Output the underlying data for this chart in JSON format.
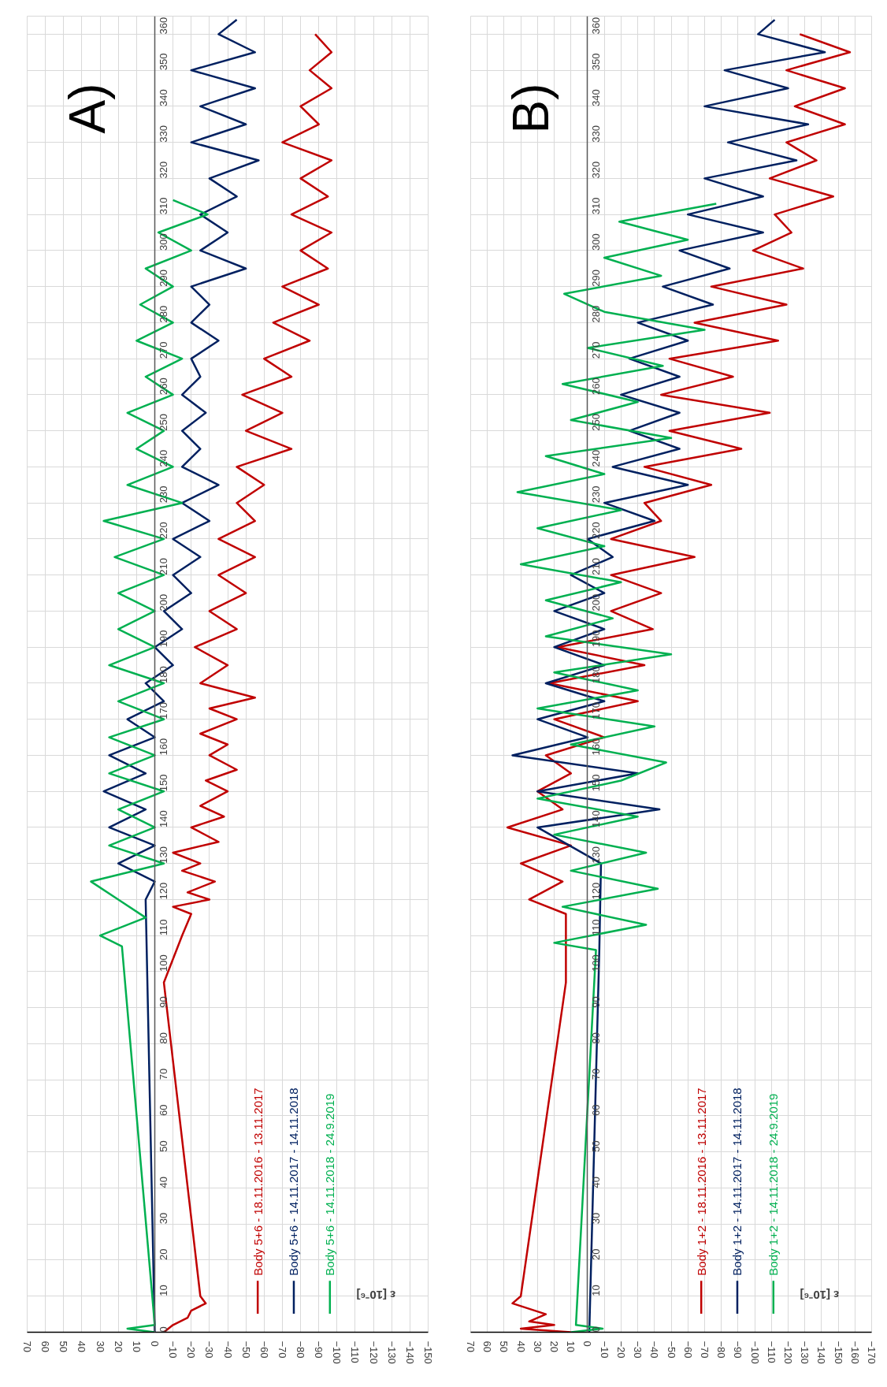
{
  "chart_data": [
    {
      "type": "line",
      "orientation": "horizontal",
      "title": "A)",
      "xlabel": "ε [10⁻⁶]",
      "ylim": [
        0,
        365
      ],
      "yticks": [
        0,
        10,
        20,
        30,
        40,
        50,
        60,
        70,
        80,
        90,
        100,
        110,
        120,
        130,
        140,
        150,
        160,
        170,
        180,
        190,
        200,
        210,
        220,
        230,
        240,
        250,
        260,
        270,
        280,
        290,
        300,
        310,
        320,
        330,
        340,
        350,
        360
      ],
      "xlim": [
        70,
        -150
      ],
      "xticks": [
        70,
        60,
        50,
        40,
        30,
        20,
        10,
        0,
        -10,
        -20,
        -30,
        -40,
        -50,
        -60,
        -70,
        -80,
        -90,
        -100,
        -110,
        -120,
        -130,
        -140,
        -150
      ],
      "grid": true,
      "legend": "bottom",
      "marker": "none",
      "line_style": "solid",
      "series": [
        {
          "name": "Body 5+6 - 18.11.2016 - 13.11.2017",
          "color": "#c00000",
          "x": [
            0,
            2,
            4,
            6,
            8,
            10,
            97,
            110,
            116,
            118,
            120,
            122,
            125,
            128,
            130,
            133,
            136,
            140,
            143,
            146,
            150,
            153,
            156,
            160,
            163,
            166,
            170,
            173,
            176,
            180,
            185,
            190,
            195,
            200,
            205,
            210,
            215,
            220,
            225,
            230,
            235,
            240,
            245,
            250,
            255,
            260,
            265,
            270,
            275,
            280,
            285,
            290,
            295,
            300,
            305,
            310,
            315,
            320,
            325,
            330,
            335,
            340,
            345,
            350,
            355,
            360
          ],
          "values": [
            -5,
            -10,
            -18,
            -20,
            -28,
            -25,
            -5,
            -15,
            -20,
            -10,
            -30,
            -18,
            -33,
            -15,
            -25,
            -10,
            -35,
            -20,
            -38,
            -25,
            -40,
            -28,
            -45,
            -30,
            -40,
            -25,
            -45,
            -30,
            -55,
            -25,
            -40,
            -22,
            -45,
            -30,
            -50,
            -35,
            -55,
            -35,
            -55,
            -45,
            -60,
            -45,
            -75,
            -50,
            -70,
            -48,
            -75,
            -60,
            -85,
            -65,
            -90,
            -70,
            -95,
            -80,
            -97,
            -75,
            -95,
            -80,
            -97,
            -70,
            -90,
            -80,
            -97,
            -85,
            -97,
            -88
          ]
        },
        {
          "name": "Body 5+6 - 14.11.2017 - 14.11.2018",
          "color": "#002060",
          "x": [
            0,
            120,
            125,
            130,
            135,
            140,
            145,
            150,
            155,
            160,
            165,
            170,
            175,
            180,
            185,
            190,
            195,
            200,
            205,
            210,
            215,
            220,
            225,
            230,
            235,
            240,
            245,
            250,
            255,
            260,
            265,
            270,
            275,
            280,
            285,
            290,
            295,
            300,
            305,
            310,
            315,
            320,
            325,
            330,
            335,
            340,
            345,
            350,
            355,
            360,
            364
          ],
          "values": [
            0,
            5,
            0,
            20,
            0,
            25,
            5,
            28,
            5,
            25,
            0,
            15,
            -5,
            5,
            -10,
            0,
            -15,
            -5,
            -20,
            -10,
            -25,
            -10,
            -30,
            -15,
            -35,
            -15,
            -25,
            -15,
            -28,
            -15,
            -25,
            -20,
            -35,
            -20,
            -30,
            -20,
            -50,
            -25,
            -40,
            -25,
            -45,
            -30,
            -57,
            -20,
            -50,
            -25,
            -55,
            -20,
            -55,
            -35,
            -45
          ]
        },
        {
          "name": "Body 5+6 - 14.11.2018 - 24.9.2019",
          "color": "#00b050",
          "x": [
            0,
            1,
            2,
            107,
            110,
            115,
            120,
            125,
            130,
            135,
            140,
            145,
            150,
            155,
            160,
            165,
            170,
            175,
            180,
            185,
            190,
            195,
            200,
            205,
            210,
            215,
            220,
            225,
            230,
            235,
            240,
            245,
            250,
            255,
            260,
            265,
            270,
            275,
            280,
            285,
            290,
            295,
            300,
            305,
            310,
            314
          ],
          "values": [
            0,
            15,
            0,
            18,
            30,
            5,
            20,
            35,
            -5,
            25,
            0,
            20,
            -5,
            25,
            0,
            25,
            -5,
            20,
            -5,
            25,
            0,
            20,
            0,
            20,
            -5,
            22,
            -5,
            28,
            -15,
            15,
            -10,
            10,
            -5,
            15,
            -10,
            5,
            -15,
            10,
            -10,
            8,
            -10,
            5,
            -20,
            -2,
            -29,
            -10
          ]
        }
      ]
    },
    {
      "type": "line",
      "orientation": "horizontal",
      "title": "B)",
      "xlabel": "ε [10⁻⁶]",
      "ylim": [
        0,
        365
      ],
      "yticks": [
        0,
        10,
        20,
        30,
        40,
        50,
        60,
        70,
        80,
        90,
        100,
        110,
        120,
        130,
        140,
        150,
        160,
        170,
        180,
        190,
        200,
        210,
        220,
        230,
        240,
        250,
        260,
        270,
        280,
        290,
        300,
        310,
        320,
        330,
        340,
        350,
        360
      ],
      "xlim": [
        70,
        -170
      ],
      "xticks": [
        70,
        60,
        50,
        40,
        30,
        20,
        10,
        0,
        -10,
        -20,
        -30,
        -40,
        -50,
        -60,
        -70,
        -80,
        -90,
        -100,
        -110,
        -120,
        -130,
        -140,
        -150,
        -160,
        -170
      ],
      "grid": true,
      "legend": "bottom",
      "marker": "none",
      "line_style": "solid",
      "series": [
        {
          "name": "Body 1+2 - 18.11.2016 - 13.11.2017",
          "color": "#c00000",
          "x": [
            0,
            1,
            2,
            3,
            5,
            8,
            10,
            97,
            116,
            120,
            125,
            130,
            135,
            140,
            145,
            150,
            155,
            160,
            165,
            170,
            175,
            180,
            185,
            190,
            195,
            200,
            205,
            210,
            215,
            220,
            225,
            230,
            235,
            240,
            245,
            250,
            255,
            260,
            265,
            270,
            275,
            280,
            285,
            290,
            295,
            300,
            305,
            310,
            315,
            320,
            325,
            330,
            335,
            340,
            345,
            350,
            355,
            360
          ],
          "values": [
            10,
            40,
            20,
            35,
            25,
            45,
            40,
            13,
            13,
            35,
            15,
            40,
            10,
            48,
            15,
            30,
            10,
            25,
            -10,
            20,
            -30,
            23,
            -34,
            18,
            -39,
            -14,
            -44,
            -14,
            -64,
            -14,
            -44,
            -34,
            -74,
            -34,
            -92,
            -49,
            -109,
            -44,
            -87,
            -49,
            -114,
            -64,
            -119,
            -74,
            -129,
            -99,
            -122,
            -112,
            -147,
            -109,
            -137,
            -119,
            -154,
            -124,
            -154,
            -119,
            -157,
            -127
          ]
        },
        {
          "name": "Body 1+2 - 14.11.2017 - 14.11.2018",
          "color": "#002060",
          "x": [
            0,
            106,
            130,
            140,
            145,
            150,
            155,
            160,
            165,
            170,
            175,
            180,
            185,
            190,
            195,
            200,
            205,
            210,
            215,
            220,
            225,
            230,
            235,
            240,
            245,
            250,
            255,
            260,
            265,
            270,
            275,
            280,
            285,
            290,
            295,
            300,
            305,
            310,
            315,
            320,
            325,
            330,
            335,
            340,
            345,
            350,
            355,
            360,
            364
          ],
          "values": [
            -1,
            -7,
            -8,
            30,
            -43,
            30,
            -30,
            45,
            0,
            30,
            -10,
            25,
            -10,
            20,
            -10,
            20,
            -10,
            10,
            -15,
            0,
            -40,
            -10,
            -60,
            -15,
            -55,
            -25,
            -55,
            -20,
            -55,
            -25,
            -60,
            -30,
            -75,
            -45,
            -85,
            -55,
            -105,
            -60,
            -105,
            -70,
            -125,
            -84,
            -132,
            -70,
            -120,
            -82,
            -142,
            -102,
            -112
          ]
        },
        {
          "name": "Body 1+2 - 14.11.2018 - 24.9.2019",
          "color": "#00b050",
          "x": [
            0,
            1,
            2,
            106,
            108,
            113,
            118,
            123,
            128,
            133,
            138,
            143,
            148,
            153,
            158,
            163,
            168,
            173,
            178,
            183,
            188,
            193,
            198,
            203,
            208,
            213,
            218,
            223,
            228,
            233,
            238,
            243,
            248,
            253,
            258,
            263,
            268,
            273,
            278,
            283,
            288,
            293,
            298,
            303,
            308,
            313
          ],
          "values": [
            10,
            -9,
            7,
            -5,
            20,
            -35,
            15,
            -42,
            10,
            -35,
            20,
            -30,
            30,
            -20,
            -47,
            10,
            -40,
            30,
            -30,
            20,
            -50,
            25,
            -15,
            25,
            -20,
            40,
            -10,
            30,
            -20,
            42,
            -10,
            25,
            -50,
            10,
            -30,
            15,
            -45,
            0,
            -70,
            -10,
            14,
            -44,
            -10,
            -60,
            -19,
            -77
          ]
        }
      ]
    }
  ]
}
